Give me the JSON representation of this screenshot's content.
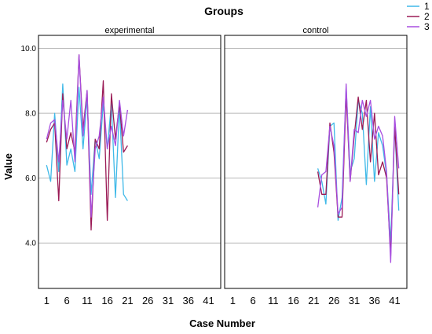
{
  "chart_data": {
    "type": "line",
    "title": "Groups",
    "xlabel": "Case Number",
    "ylabel": "Value",
    "grid": true,
    "legend_position": "top-right",
    "ylim": [
      2.6,
      10.4
    ],
    "yticks": [
      4.0,
      6.0,
      8.0,
      10.0
    ],
    "ytick_labels": [
      "4.0",
      "6.0",
      "8.0",
      "10.0"
    ],
    "xlim": [
      -1,
      44
    ],
    "xticks": [
      1,
      6,
      11,
      16,
      21,
      26,
      31,
      36,
      41
    ],
    "xtick_labels": [
      "1",
      "6",
      "11",
      "16",
      "21",
      "26",
      "31",
      "36",
      "41"
    ],
    "colors": {
      "1": "#3fb9e8",
      "2": "#9a1a55",
      "3": "#a84ee0"
    },
    "legend": [
      {
        "name": "1",
        "color": "#3fb9e8"
      },
      {
        "name": "2",
        "color": "#9a1a55"
      },
      {
        "name": "3",
        "color": "#a84ee0"
      }
    ],
    "panels": [
      {
        "label": "experimental",
        "series": [
          {
            "name": "1",
            "x": [
              1,
              2,
              3,
              4,
              5,
              6,
              7,
              8,
              9,
              10,
              11,
              12,
              13,
              14,
              15,
              16,
              17,
              18,
              19,
              20,
              21
            ],
            "values": [
              6.4,
              5.9,
              8.0,
              6.2,
              8.9,
              6.4,
              6.9,
              6.2,
              8.8,
              6.9,
              8.5,
              5.5,
              7.2,
              6.6,
              8.3,
              6.9,
              8.3,
              5.4,
              8.2,
              5.5,
              5.3
            ]
          },
          {
            "name": "2",
            "x": [
              1,
              2,
              3,
              4,
              5,
              6,
              7,
              8,
              9,
              10,
              11,
              12,
              13,
              14,
              15,
              16,
              17,
              18,
              19,
              20,
              21
            ],
            "values": [
              7.1,
              7.5,
              7.7,
              5.3,
              8.6,
              6.9,
              7.4,
              6.8,
              9.8,
              7.5,
              8.7,
              4.4,
              7.2,
              6.9,
              9.0,
              4.7,
              8.6,
              7.2,
              8.3,
              6.8,
              7.0
            ]
          },
          {
            "name": "3",
            "x": [
              1,
              2,
              3,
              4,
              5,
              6,
              7,
              8,
              9,
              10,
              11,
              12,
              13,
              14,
              15,
              16,
              17,
              18,
              19,
              20,
              21
            ],
            "values": [
              7.2,
              7.7,
              7.8,
              6.5,
              8.4,
              7.2,
              8.4,
              6.5,
              9.8,
              7.3,
              8.7,
              4.8,
              6.9,
              7.3,
              8.5,
              6.9,
              7.6,
              7.0,
              8.4,
              7.3,
              8.1
            ]
          }
        ]
      },
      {
        "label": "control",
        "series": [
          {
            "name": "1",
            "x": [
              22,
              23,
              24,
              25,
              26,
              27,
              28,
              29,
              30,
              31,
              32,
              33,
              34,
              35,
              36,
              37,
              38,
              39,
              40,
              41,
              42
            ],
            "values": [
              6.3,
              5.9,
              5.2,
              7.6,
              7.7,
              4.7,
              5.4,
              8.8,
              6.2,
              6.6,
              8.4,
              8.0,
              5.8,
              8.2,
              5.9,
              7.4,
              7.0,
              6.1,
              4.0,
              7.6,
              5.0
            ]
          },
          {
            "name": "2",
            "x": [
              22,
              23,
              24,
              25,
              26,
              27,
              28,
              29,
              30,
              31,
              32,
              33,
              34,
              35,
              36,
              37,
              38,
              39,
              40,
              41,
              42
            ],
            "values": [
              6.2,
              5.5,
              5.5,
              7.7,
              6.8,
              4.8,
              4.8,
              8.6,
              5.9,
              7.3,
              8.5,
              7.5,
              8.4,
              6.5,
              8.0,
              6.1,
              6.5,
              6.0,
              3.6,
              7.6,
              5.5
            ]
          },
          {
            "name": "3",
            "x": [
              22,
              23,
              24,
              25,
              26,
              27,
              28,
              29,
              30,
              31,
              32,
              33,
              34,
              35,
              36,
              37,
              38,
              39,
              40,
              41,
              42
            ],
            "values": [
              5.1,
              6.1,
              6.2,
              7.6,
              7.0,
              4.9,
              5.1,
              8.9,
              5.9,
              7.5,
              7.4,
              8.4,
              7.9,
              8.4,
              7.2,
              7.6,
              7.3,
              6.2,
              3.4,
              7.9,
              6.3
            ]
          }
        ]
      }
    ]
  }
}
